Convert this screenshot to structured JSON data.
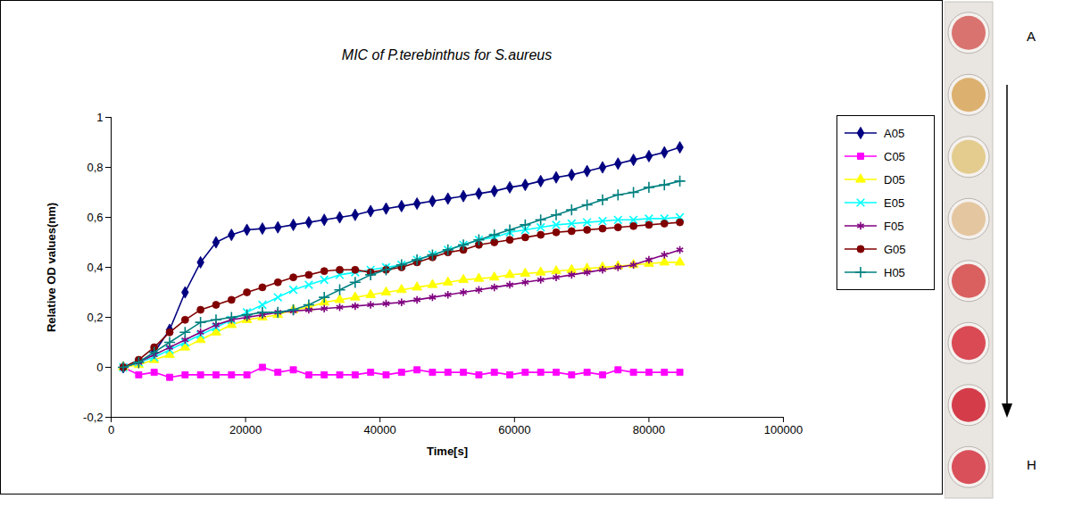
{
  "chart_data": {
    "type": "line",
    "title": "MIC of P.terebinthus for S.aureus",
    "x_label": "Time[s]",
    "y_label": "Relative OD values(nm)",
    "x": [
      1800,
      4100,
      6400,
      8700,
      11000,
      13300,
      15600,
      17900,
      20200,
      22500,
      24800,
      27100,
      29400,
      31700,
      34000,
      36300,
      38600,
      40900,
      43200,
      45500,
      47800,
      50100,
      52400,
      54700,
      57000,
      59300,
      61600,
      63900,
      66200,
      68500,
      70800,
      73100,
      75400,
      77700,
      80000,
      82300,
      84600
    ],
    "series": [
      {
        "name": "A05",
        "color": "#000080",
        "marker": "diamond",
        "values": [
          0,
          0.02,
          0.06,
          0.15,
          0.3,
          0.42,
          0.5,
          0.53,
          0.55,
          0.555,
          0.56,
          0.57,
          0.58,
          0.59,
          0.6,
          0.61,
          0.625,
          0.635,
          0.645,
          0.655,
          0.665,
          0.675,
          0.685,
          0.695,
          0.705,
          0.72,
          0.73,
          0.745,
          0.76,
          0.77,
          0.785,
          0.8,
          0.815,
          0.83,
          0.845,
          0.86,
          0.88
        ]
      },
      {
        "name": "C05",
        "color": "#FF00FF",
        "marker": "square",
        "values": [
          0,
          -0.03,
          -0.02,
          -0.04,
          -0.03,
          -0.03,
          -0.03,
          -0.03,
          -0.03,
          0,
          -0.02,
          -0.01,
          -0.03,
          -0.03,
          -0.03,
          -0.03,
          -0.02,
          -0.03,
          -0.02,
          -0.01,
          -0.02,
          -0.02,
          -0.02,
          -0.03,
          -0.02,
          -0.03,
          -0.02,
          -0.02,
          -0.02,
          -0.03,
          -0.02,
          -0.03,
          -0.01,
          -0.02,
          -0.02,
          -0.02,
          -0.02
        ]
      },
      {
        "name": "D05",
        "color": "#FFFF00",
        "marker": "triangle",
        "values": [
          0,
          0.01,
          0.03,
          0.05,
          0.08,
          0.11,
          0.14,
          0.17,
          0.19,
          0.2,
          0.21,
          0.23,
          0.24,
          0.26,
          0.27,
          0.28,
          0.29,
          0.3,
          0.31,
          0.32,
          0.33,
          0.34,
          0.35,
          0.355,
          0.36,
          0.37,
          0.375,
          0.38,
          0.385,
          0.39,
          0.395,
          0.4,
          0.405,
          0.41,
          0.415,
          0.42,
          0.42
        ]
      },
      {
        "name": "E05",
        "color": "#00FFFF",
        "marker": "times",
        "values": [
          0,
          0.02,
          0.04,
          0.07,
          0.1,
          0.13,
          0.16,
          0.19,
          0.22,
          0.25,
          0.28,
          0.31,
          0.33,
          0.35,
          0.37,
          0.38,
          0.39,
          0.4,
          0.41,
          0.43,
          0.45,
          0.47,
          0.49,
          0.51,
          0.52,
          0.54,
          0.55,
          0.56,
          0.57,
          0.575,
          0.58,
          0.585,
          0.59,
          0.59,
          0.595,
          0.595,
          0.6
        ]
      },
      {
        "name": "F05",
        "color": "#800080",
        "marker": "asterisk",
        "values": [
          0,
          0.02,
          0.05,
          0.08,
          0.11,
          0.14,
          0.17,
          0.19,
          0.2,
          0.21,
          0.22,
          0.225,
          0.23,
          0.235,
          0.24,
          0.245,
          0.25,
          0.255,
          0.26,
          0.27,
          0.28,
          0.29,
          0.3,
          0.31,
          0.32,
          0.33,
          0.34,
          0.35,
          0.36,
          0.37,
          0.38,
          0.39,
          0.4,
          0.41,
          0.43,
          0.45,
          0.47
        ]
      },
      {
        "name": "G05",
        "color": "#800000",
        "marker": "circle",
        "values": [
          0,
          0.03,
          0.08,
          0.14,
          0.19,
          0.23,
          0.25,
          0.27,
          0.3,
          0.32,
          0.34,
          0.36,
          0.37,
          0.385,
          0.39,
          0.39,
          0.38,
          0.39,
          0.4,
          0.42,
          0.44,
          0.46,
          0.47,
          0.49,
          0.5,
          0.51,
          0.52,
          0.53,
          0.54,
          0.545,
          0.55,
          0.555,
          0.56,
          0.565,
          0.57,
          0.575,
          0.58
        ]
      },
      {
        "name": "H05",
        "color": "#008080",
        "marker": "plus",
        "values": [
          0,
          0.02,
          0.06,
          0.1,
          0.14,
          0.18,
          0.19,
          0.2,
          0.21,
          0.22,
          0.22,
          0.23,
          0.25,
          0.28,
          0.31,
          0.34,
          0.37,
          0.39,
          0.41,
          0.43,
          0.45,
          0.47,
          0.49,
          0.51,
          0.53,
          0.55,
          0.57,
          0.59,
          0.61,
          0.63,
          0.65,
          0.67,
          0.69,
          0.7,
          0.72,
          0.73,
          0.745
        ]
      }
    ],
    "xlim": [
      0,
      100000
    ],
    "xticks": [
      0,
      20000,
      40000,
      60000,
      80000,
      100000
    ],
    "ylim": [
      -0.2,
      1
    ],
    "yticks": [
      {
        "value": -0.2,
        "label": "-0,2"
      },
      0,
      {
        "value": 0.2,
        "label": "0,2"
      },
      {
        "value": 0.4,
        "label": "0,4"
      },
      {
        "value": 0.6,
        "label": "0,6"
      },
      {
        "value": 0.8,
        "label": "0,8"
      },
      1
    ],
    "grid": false,
    "legend": "right"
  },
  "well_strip": {
    "labels": [
      "A",
      "H"
    ],
    "colors": [
      "#d9736f",
      "#dcb06e",
      "#e3cc8e",
      "#e4c6a0",
      "#d9605f",
      "#d94a55",
      "#d43c4a",
      "#d9505a"
    ]
  }
}
